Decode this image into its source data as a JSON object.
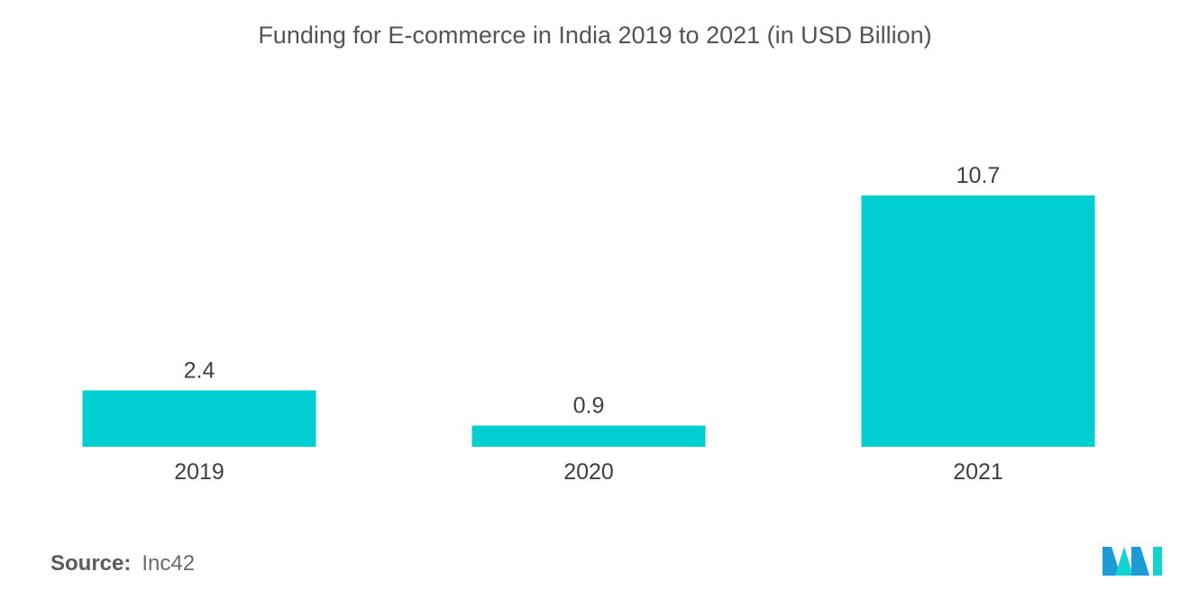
{
  "chart_data": {
    "type": "bar",
    "title": "Funding for E-commerce in India 2019 to 2021 (in USD Billion)",
    "categories": [
      "2019",
      "2020",
      "2021"
    ],
    "values": [
      2.4,
      0.9,
      10.7
    ],
    "value_labels": [
      "2.4",
      "0.9",
      "10.7"
    ],
    "ylim": [
      0,
      10.7
    ],
    "grid": false,
    "bar_color": "#00cfd1"
  },
  "footer": {
    "source_label": "Source:",
    "source_value": "Inc42"
  },
  "logo": {
    "icon": "mordor-intelligence-logo",
    "colors": [
      "#1c9bd6",
      "#13d3d0"
    ]
  }
}
